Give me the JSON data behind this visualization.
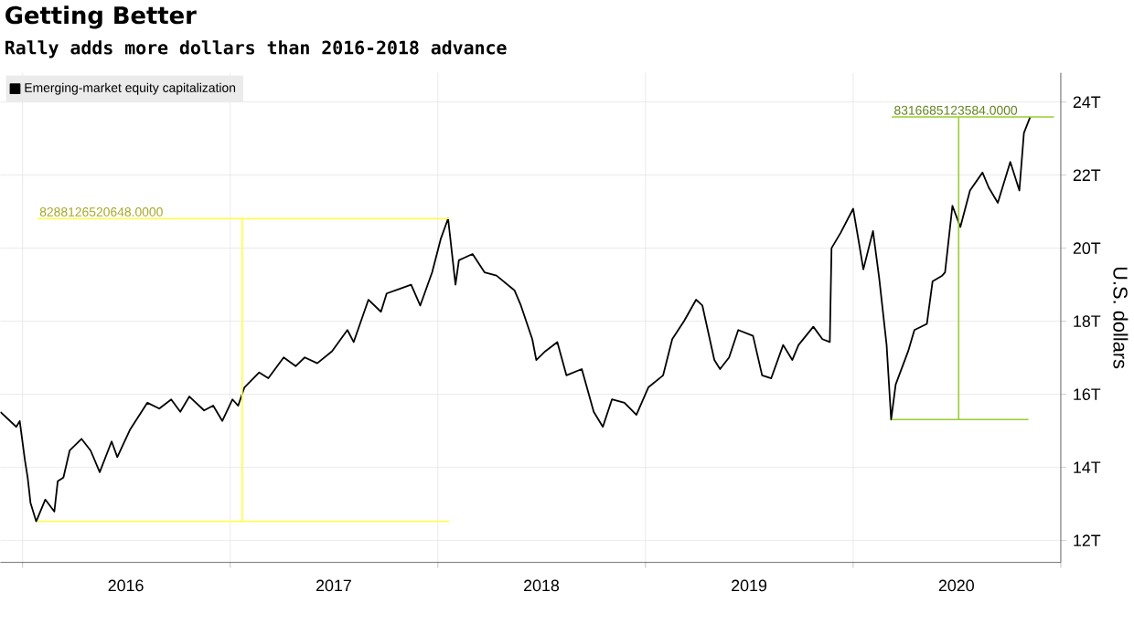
{
  "chart_data": {
    "type": "line",
    "title": "Getting Better",
    "subtitle": "Rally adds more dollars than 2016-2018 advance",
    "ylabel": "U.S. dollars",
    "xlim": [
      "2015-11-23",
      "2021-01-01"
    ],
    "ylim": [
      11.4,
      24.8
    ],
    "xticks": [
      {
        "value": "2016-01-01",
        "label": null
      },
      {
        "value": "2016-07-01",
        "label": "2016"
      },
      {
        "value": "2017-01-01",
        "label": null
      },
      {
        "value": "2017-07-02",
        "label": "2017"
      },
      {
        "value": "2018-01-01",
        "label": null
      },
      {
        "value": "2018-07-02",
        "label": "2018"
      },
      {
        "value": "2019-01-01",
        "label": null
      },
      {
        "value": "2019-07-02",
        "label": "2019"
      },
      {
        "value": "2020-01-01",
        "label": null
      },
      {
        "value": "2020-07-01",
        "label": "2020"
      },
      {
        "value": "2021-01-01",
        "label": null
      }
    ],
    "yticks": [
      {
        "value": 12,
        "label": "12T"
      },
      {
        "value": 14,
        "label": "14T"
      },
      {
        "value": 16,
        "label": "16T"
      },
      {
        "value": 18,
        "label": "18T"
      },
      {
        "value": 20,
        "label": "20T"
      },
      {
        "value": 22,
        "label": "22T"
      },
      {
        "value": 24,
        "label": "24T"
      }
    ],
    "grid": true,
    "legend": "top left",
    "annotations": [
      {
        "text": "8288126520648.0000",
        "x": "2016-01-27",
        "y": 20.81
      },
      {
        "text": "8316685123584.0000",
        "x": "2020-03-09",
        "y": 23.59
      }
    ],
    "series": [
      {
        "name": "Emerging-market equity capitalization",
        "color": "#000000",
        "x": [
          "2015-11-23",
          "2015-12-21",
          "2015-12-27",
          "2016-01-05",
          "2016-01-10",
          "2016-01-15",
          "2016-01-25",
          "2016-02-10",
          "2016-02-26",
          "2016-03-03",
          "2016-03-13",
          "2016-03-24",
          "2016-04-14",
          "2016-04-30",
          "2016-05-16",
          "2016-06-06",
          "2016-06-16",
          "2016-07-08",
          "2016-08-08",
          "2016-08-29",
          "2016-09-19",
          "2016-10-05",
          "2016-10-21",
          "2016-11-16",
          "2016-12-02",
          "2016-12-18",
          "2017-01-05",
          "2017-01-15",
          "2017-01-26",
          "2017-02-21",
          "2017-03-09",
          "2017-04-05",
          "2017-04-26",
          "2017-05-12",
          "2017-06-03",
          "2017-06-29",
          "2017-07-26",
          "2017-08-06",
          "2017-09-01",
          "2017-09-23",
          "2017-10-03",
          "2017-10-25",
          "2017-11-15",
          "2017-12-01",
          "2017-12-22",
          "2018-01-06",
          "2018-01-19",
          "2018-02-01",
          "2018-02-07",
          "2018-03-03",
          "2018-03-24",
          "2018-04-14",
          "2018-05-16",
          "2018-05-27",
          "2018-06-16",
          "2018-06-23",
          "2018-07-09",
          "2018-07-30",
          "2018-08-15",
          "2018-09-11",
          "2018-10-02",
          "2018-10-18",
          "2018-11-03",
          "2018-11-25",
          "2018-12-16",
          "2019-01-06",
          "2019-02-01",
          "2019-02-17",
          "2019-03-10",
          "2019-03-31",
          "2019-04-11",
          "2019-05-02",
          "2019-05-12",
          "2019-05-28",
          "2019-06-13",
          "2019-07-09",
          "2019-07-25",
          "2019-08-10",
          "2019-08-31",
          "2019-09-16",
          "2019-09-27",
          "2019-10-23",
          "2019-11-08",
          "2019-11-21",
          "2019-11-24",
          "2019-12-10",
          "2020-01-01",
          "2020-01-11",
          "2020-01-19",
          "2020-02-05",
          "2020-02-16",
          "2020-02-29",
          "2020-03-08",
          "2020-03-16",
          "2020-04-07",
          "2020-04-18",
          "2020-05-10",
          "2020-05-20",
          "2020-06-06",
          "2020-06-11",
          "2020-06-24",
          "2020-07-08",
          "2020-07-25",
          "2020-08-16",
          "2020-08-27",
          "2020-09-12",
          "2020-10-04",
          "2020-10-20",
          "2020-10-28",
          "2020-11-08"
        ],
        "values": [
          15.52,
          15.11,
          15.27,
          14.21,
          13.72,
          13.03,
          12.52,
          13.12,
          12.79,
          13.62,
          13.72,
          14.46,
          14.78,
          14.46,
          13.87,
          14.71,
          14.28,
          15.02,
          15.77,
          15.61,
          15.86,
          15.52,
          15.94,
          15.56,
          15.69,
          15.27,
          15.86,
          15.69,
          16.19,
          16.6,
          16.44,
          17.01,
          16.77,
          17.01,
          16.85,
          17.18,
          17.76,
          17.43,
          18.59,
          18.26,
          18.76,
          18.88,
          19.0,
          18.43,
          19.34,
          20.25,
          20.81,
          19.0,
          19.67,
          19.84,
          19.34,
          19.25,
          18.84,
          18.43,
          17.51,
          16.94,
          17.18,
          17.43,
          16.52,
          16.69,
          15.52,
          15.11,
          15.86,
          15.77,
          15.44,
          16.19,
          16.52,
          17.51,
          18.01,
          18.59,
          18.43,
          16.94,
          16.69,
          17.01,
          17.76,
          17.6,
          16.52,
          16.44,
          17.35,
          16.94,
          17.35,
          17.85,
          17.51,
          17.43,
          20.0,
          20.42,
          21.08,
          20.17,
          19.42,
          20.47,
          19.17,
          17.35,
          15.31,
          16.27,
          17.18,
          17.76,
          17.93,
          19.09,
          19.25,
          19.34,
          21.16,
          20.58,
          21.58,
          22.07,
          21.66,
          21.24,
          22.36,
          21.58,
          23.15,
          23.59
        ]
      },
      {
        "color": "#ffff40",
        "x": [
          "2016-01-27",
          "2018-01-21"
        ],
        "values": [
          12.52,
          12.52
        ]
      },
      {
        "color": "#ffff40",
        "x": [
          "2016-01-27",
          "2018-01-21"
        ],
        "values": [
          20.81,
          20.81
        ]
      },
      {
        "color": "#ffff40",
        "x": [
          "2017-01-22",
          "2017-01-22"
        ],
        "values": [
          12.52,
          20.81
        ]
      },
      {
        "color": "#9acd32",
        "x": [
          "2020-03-09",
          "2020-11-05"
        ],
        "values": [
          15.31,
          15.31
        ]
      },
      {
        "color": "#9acd32",
        "x": [
          "2020-03-09",
          "2020-12-20"
        ],
        "values": [
          23.59,
          23.59
        ]
      },
      {
        "color": "#9acd32",
        "x": [
          "2020-07-05",
          "2020-07-05"
        ],
        "values": [
          15.31,
          23.59
        ]
      }
    ]
  }
}
